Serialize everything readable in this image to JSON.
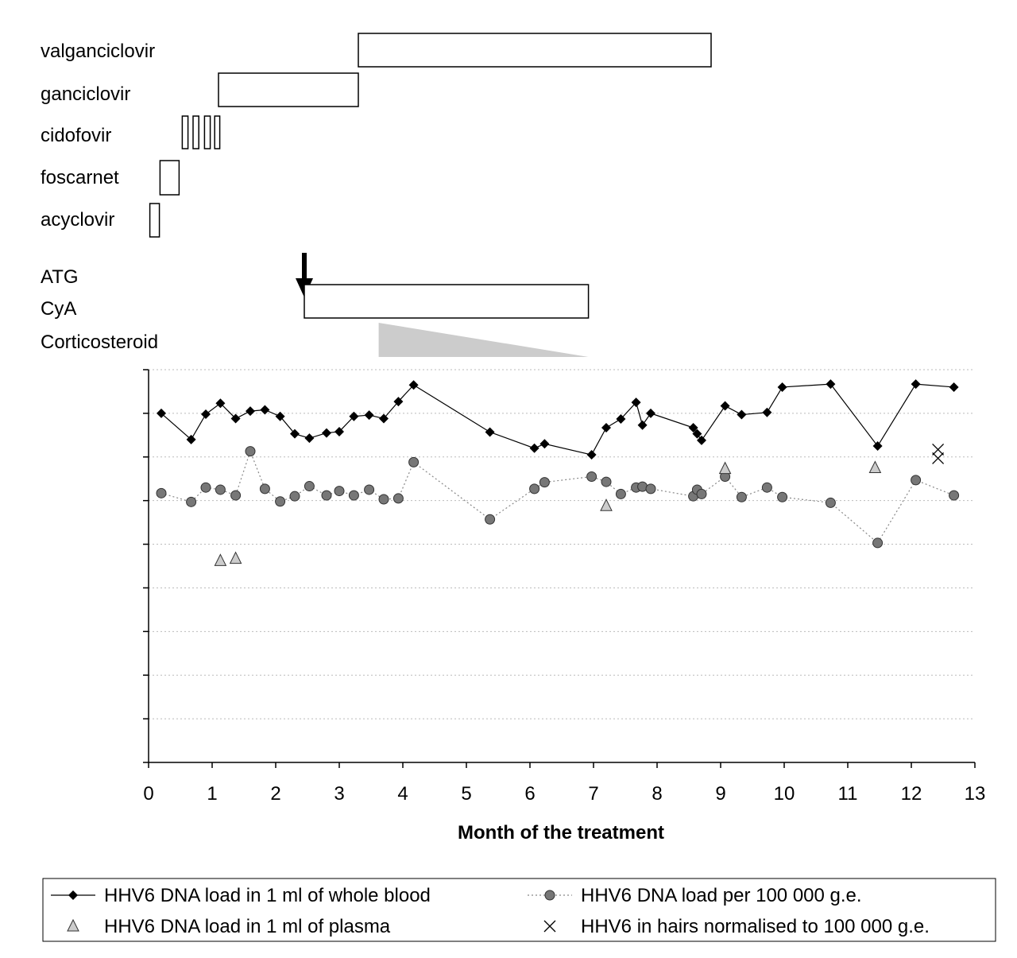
{
  "treatment_labels": {
    "valganciclovir": "valganciclovir",
    "ganciclovir": "ganciclovir",
    "cidofovir": "cidofovir",
    "foscarnet": "foscarnet",
    "acyclovir": "acyclovir",
    "atg": "ATG",
    "cya": "CyA",
    "corticosteroid": "Corticosteroid"
  },
  "treatments": {
    "valganciclovir": [
      3.3,
      8.85
    ],
    "ganciclovir": [
      1.1,
      3.3
    ],
    "cidofovir": [
      [
        0.53,
        0.62
      ],
      [
        0.7,
        0.79
      ],
      [
        0.88,
        0.97
      ],
      [
        1.04,
        1.12
      ]
    ],
    "foscarnet": [
      0.18,
      0.48
    ],
    "acyclovir": [
      0.02,
      0.17
    ],
    "atg": 2.45,
    "cya": [
      2.45,
      6.92
    ],
    "corticosteroid": [
      3.62,
      6.92
    ]
  },
  "colors": {
    "blood": "#000000",
    "ge": "#777777",
    "plasma": "#cccccc",
    "hairs": "#000000",
    "steroid": "#cccccc",
    "grid": "#bbbbbb"
  },
  "chart_data": {
    "type": "scatter",
    "title": "",
    "xlabel": "Month of the treatment",
    "ylabel": "",
    "xlim": [
      0,
      13
    ],
    "ylim": [
      0,
      9
    ],
    "x_ticks": [
      "0",
      "1",
      "2",
      "3",
      "4",
      "5",
      "6",
      "7",
      "8",
      "9",
      "10",
      "11",
      "12",
      "13"
    ],
    "y_grid_values": [
      1,
      2,
      3,
      4,
      5,
      6,
      7,
      8,
      9
    ],
    "grid": "horizontal dotted",
    "legend_position": "bottom",
    "series": [
      {
        "name": "HHV6 DNA load in 1 ml of whole blood",
        "marker": "diamond",
        "line": "solid",
        "x": [
          0.2,
          0.67,
          0.9,
          1.13,
          1.37,
          1.6,
          1.83,
          2.07,
          2.3,
          2.53,
          2.8,
          3.0,
          3.23,
          3.47,
          3.7,
          3.93,
          4.17,
          5.37,
          6.07,
          6.23,
          6.97,
          7.2,
          7.43,
          7.67,
          7.77,
          7.9,
          8.57,
          8.63,
          8.7,
          9.07,
          9.33,
          9.73,
          9.97,
          10.73,
          11.47,
          12.07,
          12.67
        ],
        "y": [
          8.0,
          7.4,
          7.98,
          8.23,
          7.88,
          8.05,
          8.08,
          7.93,
          7.53,
          7.43,
          7.55,
          7.58,
          7.93,
          7.96,
          7.88,
          8.27,
          8.65,
          7.57,
          7.2,
          7.3,
          7.05,
          7.67,
          7.87,
          8.25,
          7.73,
          8.0,
          7.67,
          7.53,
          7.38,
          8.17,
          7.97,
          8.02,
          8.6,
          8.67,
          7.25,
          8.67,
          8.6
        ]
      },
      {
        "name": "HHV6 DNA load per 100 000 g.e.",
        "marker": "circle",
        "line": "dotted",
        "x": [
          0.2,
          0.67,
          0.9,
          1.13,
          1.37,
          1.6,
          1.83,
          2.07,
          2.3,
          2.53,
          2.8,
          3.0,
          3.23,
          3.47,
          3.7,
          3.93,
          4.17,
          5.37,
          6.07,
          6.23,
          6.97,
          7.2,
          7.43,
          7.67,
          7.77,
          7.9,
          8.57,
          8.63,
          8.7,
          9.07,
          9.33,
          9.73,
          9.97,
          10.73,
          11.47,
          12.07,
          12.67
        ],
        "y": [
          6.17,
          5.97,
          6.3,
          6.25,
          6.12,
          7.13,
          6.27,
          5.98,
          6.1,
          6.33,
          6.12,
          6.22,
          6.12,
          6.25,
          6.03,
          6.05,
          6.88,
          5.57,
          6.27,
          6.42,
          6.55,
          6.43,
          6.15,
          6.3,
          6.32,
          6.27,
          6.1,
          6.25,
          6.15,
          6.55,
          6.08,
          6.3,
          6.08,
          5.95,
          5.03,
          6.47,
          6.12
        ]
      },
      {
        "name": "HHV6 DNA load in 1 ml of plasma",
        "marker": "triangle",
        "line": "none",
        "x": [
          1.13,
          1.37,
          7.2,
          9.07,
          11.43
        ],
        "y": [
          4.62,
          4.67,
          5.88,
          6.73,
          6.75
        ]
      },
      {
        "name": "HHV6 in hairs normalised to 100 000 g.e.",
        "marker": "x",
        "line": "none",
        "x": [
          12.42,
          12.42
        ],
        "y": [
          7.17,
          6.97
        ]
      }
    ]
  }
}
